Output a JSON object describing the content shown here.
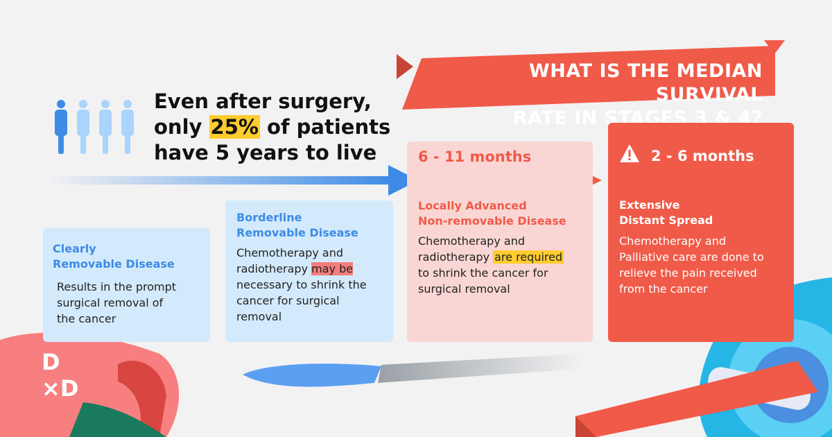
{
  "banner": {
    "line1": "WHAT IS THE MEDIAN SURVIVAL",
    "line2": "RATE IN STAGES 3 & 4?"
  },
  "headline": {
    "line1": "Even after surgery,",
    "line2_pre": "only ",
    "line2_highlight": "25%",
    "line2_post": " of patients",
    "line3": "have 5 years to live"
  },
  "cards": [
    {
      "title_line1": "Clearly",
      "title_line2": "Removable Disease",
      "body": [
        "Results in the prompt",
        "surgical removal of",
        "the cancer"
      ]
    },
    {
      "title_line1": "Borderline",
      "title_line2": "Removable Disease",
      "body_line1": "Chemotherapy and",
      "body_line2_pre": "radiotherapy ",
      "body_line2_highlight": "may be",
      "body_line3": "necessary to shrink the",
      "body_line4": "cancer for surgical",
      "body_line5": "removal"
    },
    {
      "months": "6 - 11 months",
      "title_line1": "Locally Advanced",
      "title_line2": "Non-removable Disease",
      "body_line1": "Chemotherapy and",
      "body_line2_pre": "radiotherapy ",
      "body_line2_highlight": "are required",
      "body_line3": "to shrink the cancer for",
      "body_line4": "surgical removal"
    },
    {
      "months": "2 - 6 months",
      "title_line1": "Extensive",
      "title_line2": "Distant Spread",
      "body": [
        "Chemotherapy and",
        "Palliative care are done to",
        "relieve the pain received",
        "from the cancer"
      ]
    }
  ],
  "logo": {
    "line1": "D",
    "line2": "×D"
  },
  "colors": {
    "accent_red": "#f05a48",
    "accent_blue": "#3d8be6",
    "highlight_yellow": "#ffcc2e",
    "highlight_pink": "#f47d7d"
  },
  "icons": [
    "person-icon",
    "warning-icon",
    "scalpel-illustration"
  ]
}
